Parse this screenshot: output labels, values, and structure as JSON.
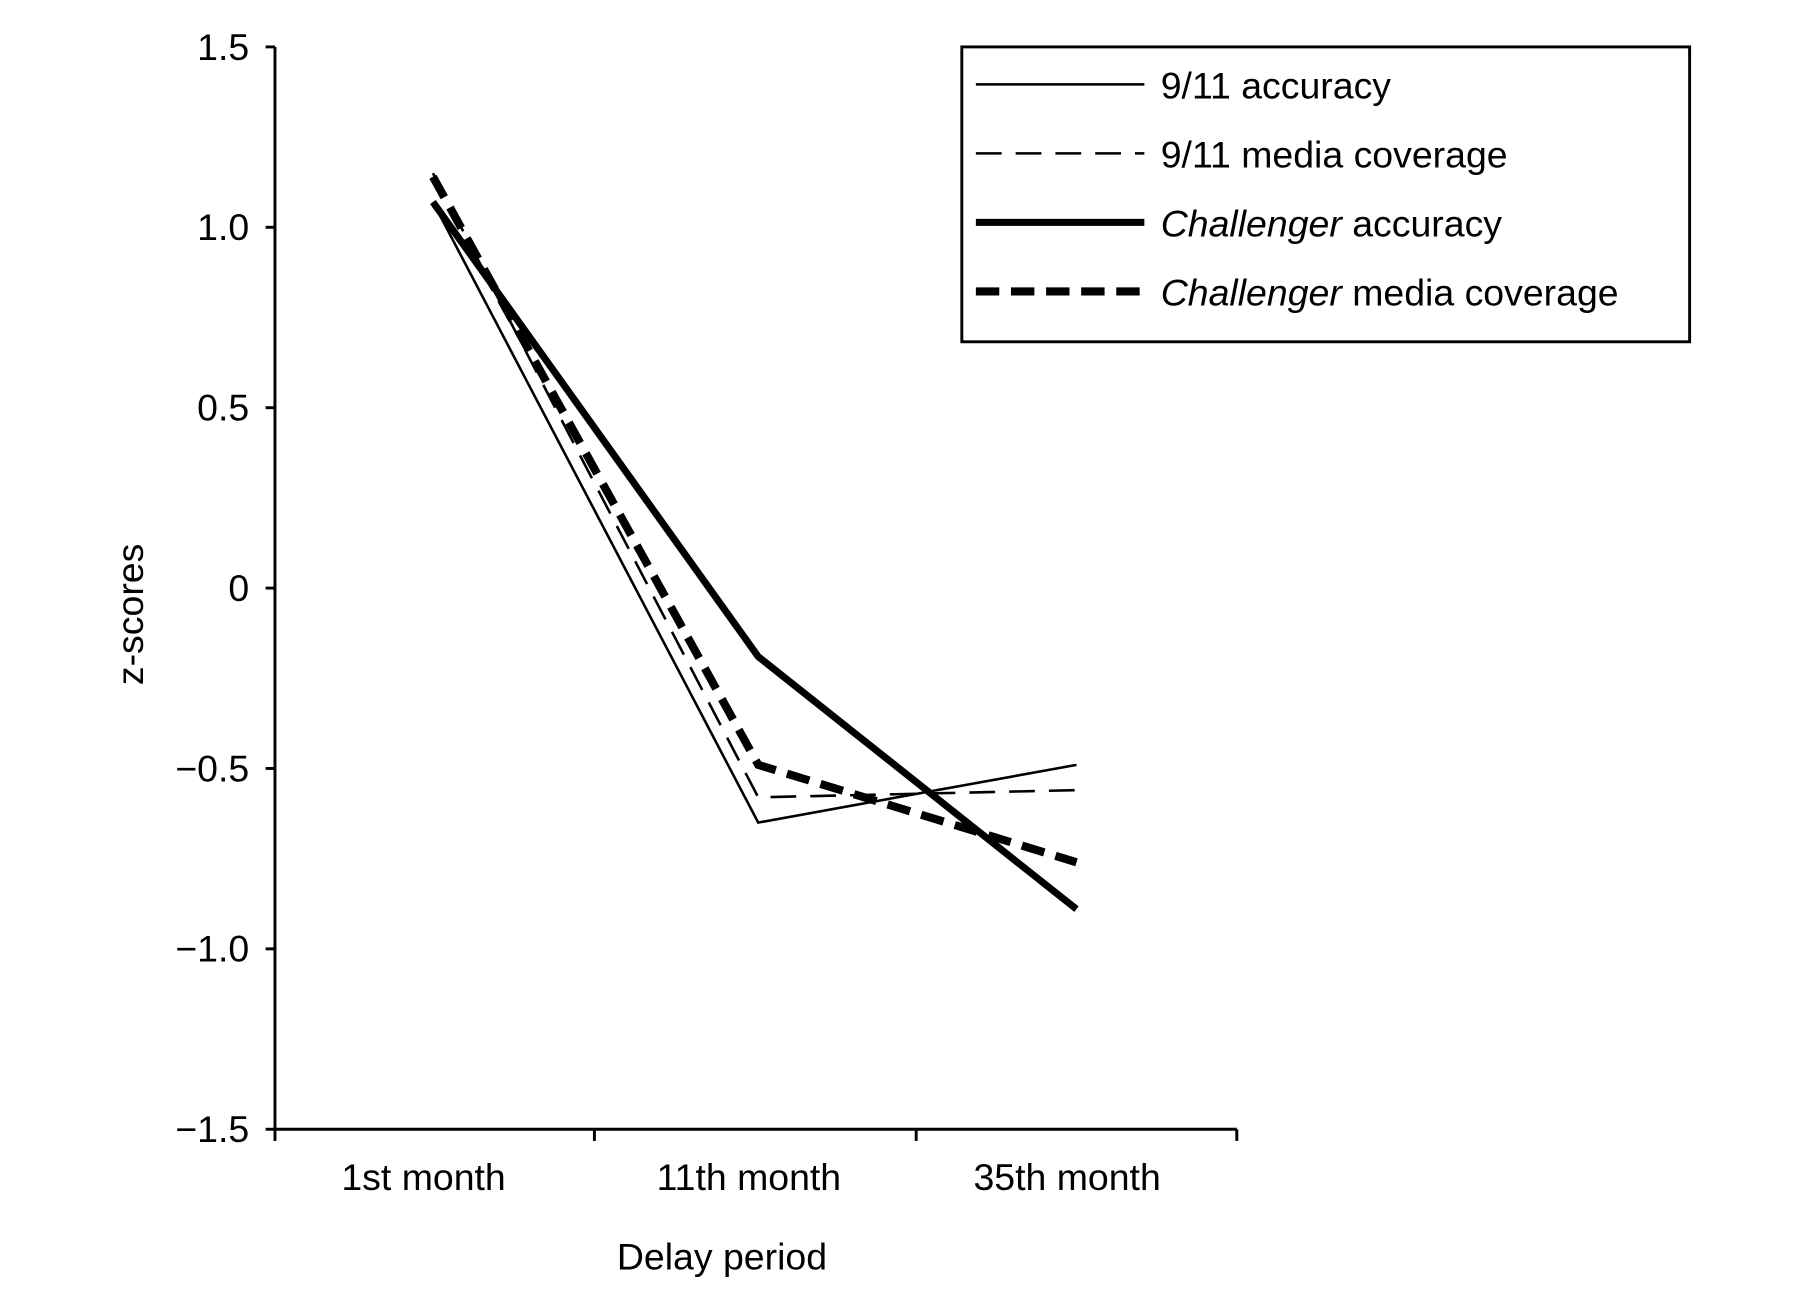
{
  "chart_data": {
    "type": "line",
    "title": "",
    "xlabel": "Delay period",
    "ylabel": "z-scores",
    "categories": [
      "1st month",
      "11th month",
      "35th month"
    ],
    "ylim": [
      -1.5,
      1.5
    ],
    "yticks": [
      1.5,
      1.0,
      0.5,
      0,
      -0.5,
      -1.0,
      -1.5
    ],
    "ytick_labels": [
      "1.5",
      "1.0",
      "0.5",
      "0",
      "−0.5",
      "−1.0",
      "−1.5"
    ],
    "grid": false,
    "legend_position": "top-right",
    "series": [
      {
        "name": "9/11 accuracy",
        "name_italic": "",
        "name_rest": "9/11 accuracy",
        "style": "thin-solid",
        "values": [
          1.07,
          -0.65,
          -0.49
        ]
      },
      {
        "name": "9/11 media coverage",
        "name_italic": "",
        "name_rest": "9/11 media coverage",
        "style": "thin-dashed",
        "values": [
          1.15,
          -0.58,
          -0.56
        ]
      },
      {
        "name": "Challenger accuracy",
        "name_italic": "Challenger",
        "name_rest": " accuracy",
        "style": "thick-solid",
        "values": [
          1.07,
          -0.19,
          -0.89
        ]
      },
      {
        "name": "Challenger media coverage",
        "name_italic": "Challenger",
        "name_rest": " media coverage",
        "style": "thick-dashed",
        "values": [
          1.14,
          -0.49,
          -0.76
        ]
      }
    ]
  }
}
